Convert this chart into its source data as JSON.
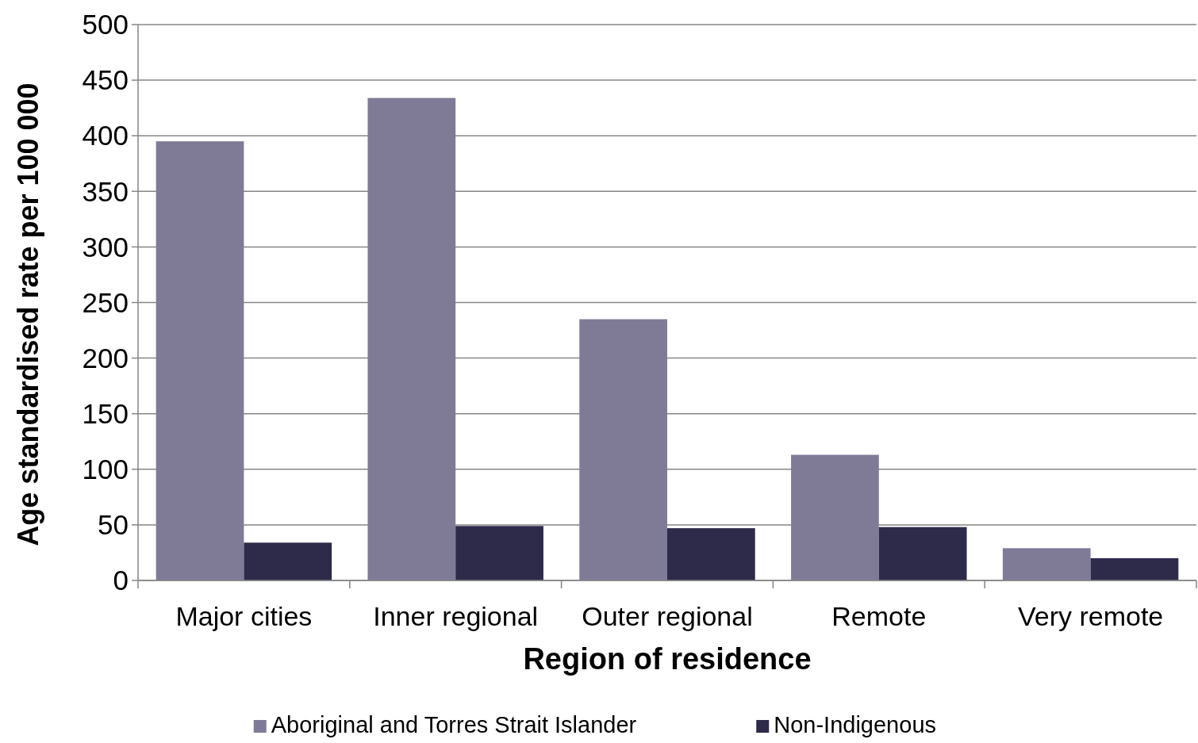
{
  "chart_data": {
    "type": "bar",
    "xlabel": "Region of residence",
    "ylabel": "Age standardised rate per 100 000",
    "categories": [
      "Major cities",
      "Inner regional",
      "Outer regional",
      "Remote",
      "Very remote"
    ],
    "series": [
      {
        "name": "Aboriginal and Torres Strait Islander",
        "color": "#7f7b97",
        "values": [
          395,
          434,
          235,
          113,
          29
        ]
      },
      {
        "name": "Non-Indigenous",
        "color": "#2d2a4a",
        "values": [
          34,
          49,
          47,
          48,
          20
        ]
      }
    ],
    "ylim": [
      0,
      500
    ],
    "yticks": [
      0,
      50,
      100,
      150,
      200,
      250,
      300,
      350,
      400,
      450,
      500
    ],
    "grid": "y",
    "legend": "bottom"
  }
}
